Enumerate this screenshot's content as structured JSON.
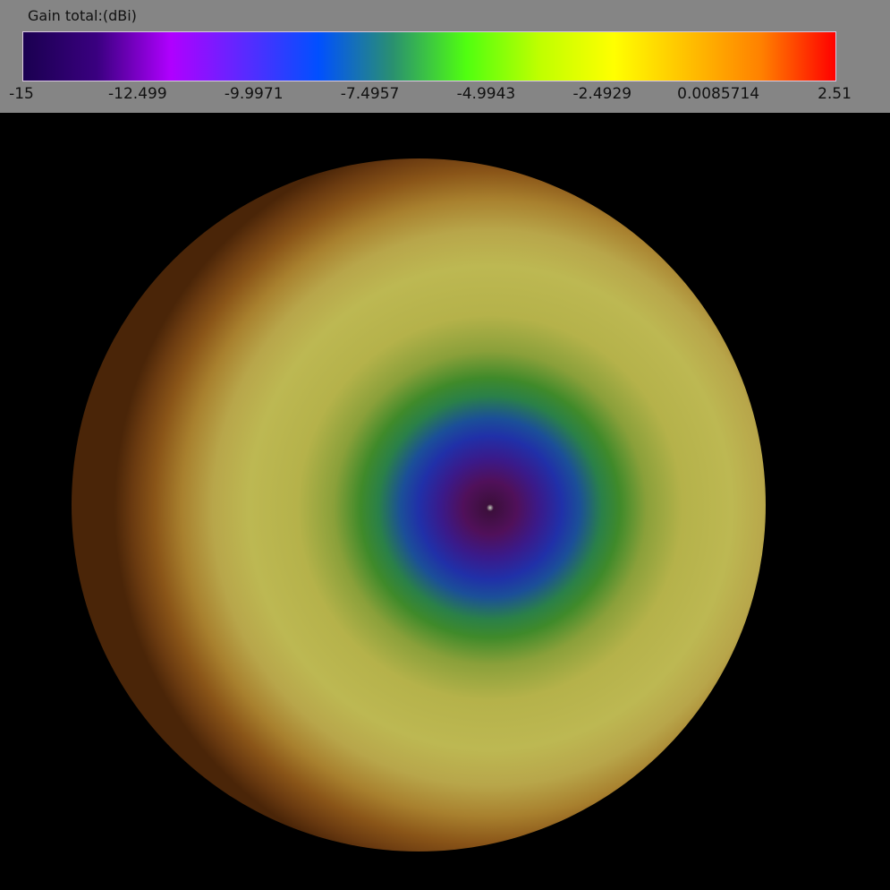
{
  "chart_data": {
    "type": "heatmap",
    "title": "Gain total:(dBi)",
    "colorbar": {
      "range": [
        -15,
        2.51
      ],
      "tick_labels": [
        "-15",
        "-12.499",
        "-9.9971",
        "-7.4957",
        "-4.9943",
        "-2.4929",
        "0.0085714",
        "2.51"
      ],
      "colors": [
        "#1a0050",
        "#3a0080",
        "#b000ff",
        "#5a2aff",
        "#0050ff",
        "#2a9070",
        "#50ff10",
        "#c0ff00",
        "#ffff00",
        "#ffc000",
        "#ff8000",
        "#ff0000"
      ],
      "orientation": "horizontal",
      "placement": "top"
    },
    "view": "3D radiation pattern sphere, viewed from axis; minimum gain at center, higher gain toward edge"
  }
}
